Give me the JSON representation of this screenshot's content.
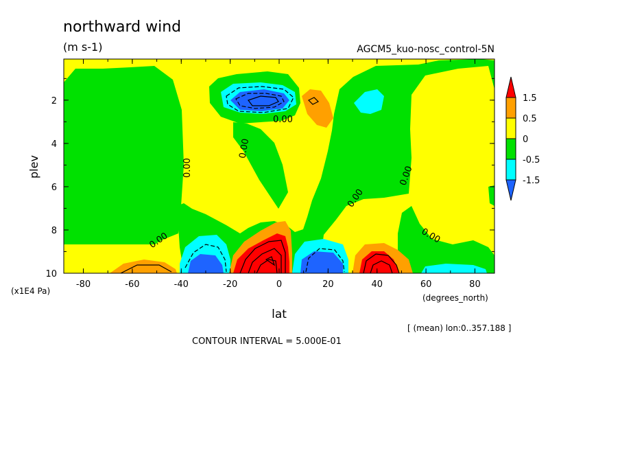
{
  "chart_data": {
    "type": "contour",
    "title": "northward wind",
    "units": "(m s-1)",
    "experiment": "AGCM5_kuo-nosc_control-5N",
    "xlabel": "lat",
    "xunits": "(degrees_north)",
    "ylabel": "plev",
    "yunits": "(x1E4 Pa)",
    "x_ticks": [
      -80,
      -60,
      -40,
      -20,
      0,
      20,
      40,
      60,
      80
    ],
    "y_ticks": [
      2,
      4,
      6,
      8,
      10
    ],
    "xlim": [
      -88,
      88
    ],
    "ylim": [
      10,
      0.1
    ],
    "average_note": "[ (mean) lon:0..357.188 ]",
    "contour_interval": "CONTOUR INTERVAL = 5.000E-01",
    "zero_label": "0.00",
    "colorbar": {
      "labels": [
        "1.5",
        "0.5",
        "0",
        "-0.5",
        "-1.5"
      ],
      "levels": [
        -1.5,
        -0.5,
        0,
        0.5,
        1.5
      ],
      "colors": [
        "#1e64ff",
        "#00ffff",
        "#00e100",
        "#ffff00",
        "#ffa000",
        "#ff0000"
      ]
    },
    "features": [
      {
        "kind": "min",
        "lat": 0,
        "plev": 2.0,
        "value": -2.0
      },
      {
        "kind": "max",
        "lat": 15,
        "plev": 2.0,
        "value": 1.0
      },
      {
        "kind": "min",
        "lat": 37,
        "plev": 2.1,
        "value": -0.6
      },
      {
        "kind": "min",
        "lat": -31,
        "plev": 9.6,
        "value": -2.5
      },
      {
        "kind": "max",
        "lat": -3,
        "plev": 9.3,
        "value": 4.0
      },
      {
        "kind": "min",
        "lat": 15,
        "plev": 9.6,
        "value": -3.0
      },
      {
        "kind": "max",
        "lat": 42,
        "plev": 9.6,
        "value": 3.0
      },
      {
        "kind": "max",
        "lat": -55,
        "plev": 9.8,
        "value": 1.0
      },
      {
        "kind": "min",
        "lat": 70,
        "plev": 9.9,
        "value": -0.6
      }
    ]
  }
}
